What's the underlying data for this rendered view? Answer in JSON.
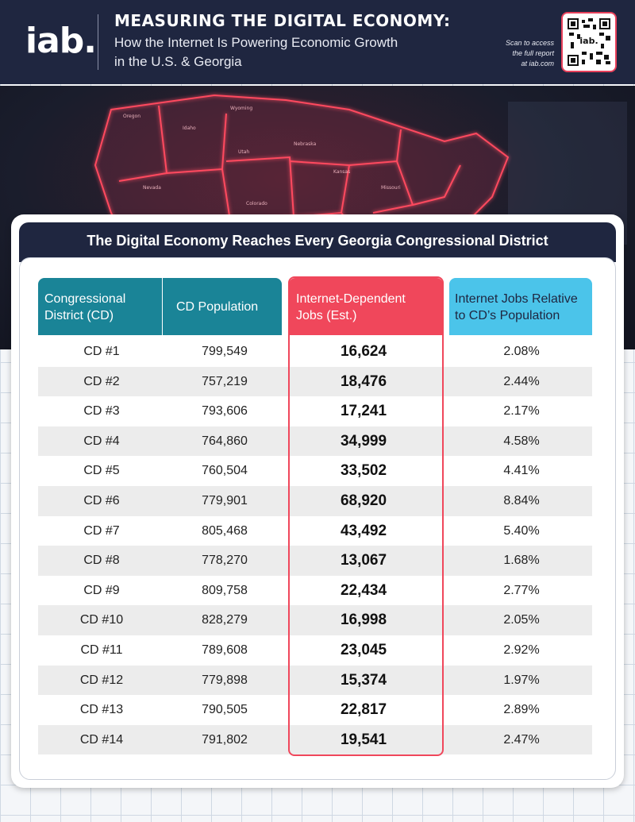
{
  "header": {
    "logo": "iab.",
    "title": "MEASURING THE DIGITAL ECONOMY:",
    "subtitle_line1": "How the Internet Is Powering Economic Growth",
    "subtitle_line2": "in the U.S. & Georgia",
    "scan_line1": "Scan to access",
    "scan_line2": "the full report",
    "scan_line3": "at iab.com"
  },
  "colors": {
    "navy": "#1f2640",
    "teal": "#1a8497",
    "red": "#f0475b",
    "sky": "#4bc4ea"
  },
  "table": {
    "title": "The Digital Economy Reaches Every Georgia Congressional District",
    "headers": {
      "cd": "Congressional District (CD)",
      "pop": "CD Population",
      "jobs": "Internet-Dependent Jobs (Est.)",
      "rel": "Internet Jobs Relative to CD’s Population"
    },
    "rows": [
      {
        "cd": "CD #1",
        "pop": "799,549",
        "jobs": "16,624",
        "rel": "2.08%"
      },
      {
        "cd": "CD #2",
        "pop": "757,219",
        "jobs": "18,476",
        "rel": "2.44%"
      },
      {
        "cd": "CD #3",
        "pop": "793,606",
        "jobs": "17,241",
        "rel": "2.17%"
      },
      {
        "cd": "CD #4",
        "pop": "764,860",
        "jobs": "34,999",
        "rel": "4.58%"
      },
      {
        "cd": "CD #5",
        "pop": "760,504",
        "jobs": "33,502",
        "rel": "4.41%"
      },
      {
        "cd": "CD #6",
        "pop": "779,901",
        "jobs": "68,920",
        "rel": "8.84%"
      },
      {
        "cd": "CD #7",
        "pop": "805,468",
        "jobs": "43,492",
        "rel": "5.40%"
      },
      {
        "cd": "CD #8",
        "pop": "778,270",
        "jobs": "13,067",
        "rel": "1.68%"
      },
      {
        "cd": "CD #9",
        "pop": "809,758",
        "jobs": "22,434",
        "rel": "2.77%"
      },
      {
        "cd": "CD #10",
        "pop": "828,279",
        "jobs": "16,998",
        "rel": "2.05%"
      },
      {
        "cd": "CD #11",
        "pop": "789,608",
        "jobs": "23,045",
        "rel": "2.92%"
      },
      {
        "cd": "CD #12",
        "pop": "779,898",
        "jobs": "15,374",
        "rel": "1.97%"
      },
      {
        "cd": "CD #13",
        "pop": "790,505",
        "jobs": "22,817",
        "rel": "2.89%"
      },
      {
        "cd": "CD #14",
        "pop": "791,802",
        "jobs": "19,541",
        "rel": "2.47%"
      }
    ]
  }
}
